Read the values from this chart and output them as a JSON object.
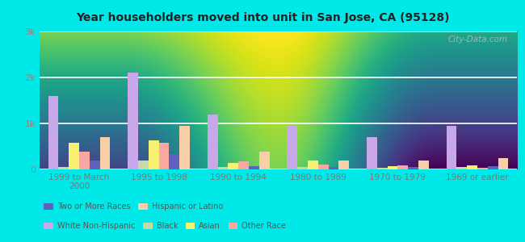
{
  "title": "Year householders moved into unit in San Jose, CA (95128)",
  "categories": [
    "1999 to March\n2000",
    "1995 to 1998",
    "1990 to 1994",
    "1980 to 1989",
    "1970 to 1979",
    "1969 or earlier"
  ],
  "series_order": [
    "White Non-Hispanic",
    "Black",
    "Asian",
    "Other Race",
    "Two or More Races",
    "Hispanic or Latino"
  ],
  "series": {
    "White Non-Hispanic": [
      1600,
      2100,
      1200,
      950,
      700,
      950
    ],
    "Black": [
      50,
      200,
      60,
      50,
      40,
      50
    ],
    "Asian": [
      580,
      640,
      140,
      190,
      70,
      90
    ],
    "Other Race": [
      380,
      580,
      170,
      100,
      90,
      40
    ],
    "Two or More Races": [
      190,
      340,
      75,
      55,
      45,
      70
    ],
    "Hispanic or Latino": [
      700,
      940,
      390,
      195,
      190,
      240
    ]
  },
  "colors": {
    "White Non-Hispanic": "#c8a8e8",
    "Black": "#c8d8a8",
    "Asian": "#f8f070",
    "Other Race": "#f8a8a0",
    "Two or More Races": "#6060c0",
    "Hispanic or Latino": "#f8d0a8"
  },
  "ylim": [
    0,
    3000
  ],
  "yticks": [
    0,
    1000,
    2000,
    3000
  ],
  "ytick_labels": [
    "0",
    "1k",
    "2k",
    "3k"
  ],
  "outer_background": "#00e8e8",
  "plot_background_top": "#f0f8e8",
  "plot_background_bottom": "#d8f0d0",
  "watermark": "City-Data.com",
  "legend_row1": [
    "White Non-Hispanic",
    "Black",
    "Asian",
    "Other Race"
  ],
  "legend_row2": [
    "Two or More Races",
    "Hispanic or Latino"
  ]
}
